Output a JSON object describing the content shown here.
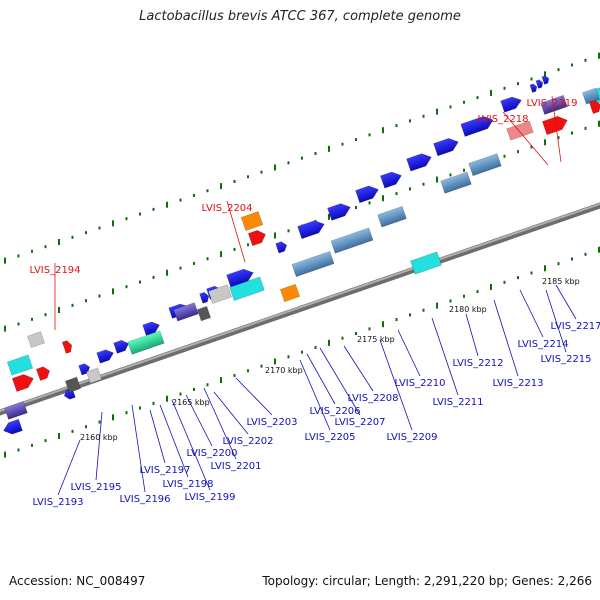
{
  "title": "Lactobacillus brevis ATCC 367, complete genome",
  "footer": {
    "accession": "Accession: NC_008497",
    "topology": "Topology: circular; Length: 2,291,220 bp; Genes: 2,266"
  },
  "colors": {
    "highlight_label": "#dd1111",
    "gene_label": "#1111bb",
    "backbone": "#8a8a8a",
    "gene_blue": "#1a1ad8",
    "gene_cyan": "#22e0e0",
    "gene_red": "#ee1111",
    "gene_orange": "#ff8800",
    "gene_grey": "#c8c8c8",
    "gene_steel": "#5b8fc0",
    "gene_green": "#33dd99",
    "gene_purple": "#4a3a99",
    "gene_pink": "#ee8888",
    "tick_green": "#0d6e0d"
  },
  "scale_ticks": [
    "2160 kbp",
    "2165 kbp",
    "2170 kbp",
    "2175 kbp",
    "2180 kbp",
    "2185 kbp"
  ],
  "highlighted_genes": [
    "LVIS_2194",
    "LVIS_2204",
    "LVIS_2218",
    "LVIS_2219"
  ],
  "genes": [
    "LVIS_2193",
    "LVIS_2195",
    "LVIS_2196",
    "LVIS_2197",
    "LVIS_2198",
    "LVIS_2199",
    "LVIS_2200",
    "LVIS_2201",
    "LVIS_2202",
    "LVIS_2203",
    "LVIS_2205",
    "LVIS_2206",
    "LVIS_2207",
    "LVIS_2208",
    "LVIS_2209",
    "LVIS_2210",
    "LVIS_2211",
    "LVIS_2212",
    "LVIS_2213",
    "LVIS_2214",
    "LVIS_2215",
    "LVIS_2217"
  ]
}
